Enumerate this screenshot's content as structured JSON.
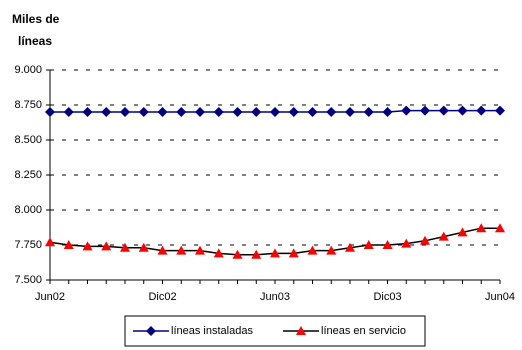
{
  "chart_data": {
    "type": "line",
    "title_lines": [
      "Miles de",
      "líneas"
    ],
    "categories": [
      "Jun02",
      null,
      null,
      null,
      null,
      null,
      "Dic02",
      null,
      null,
      null,
      null,
      null,
      "Jun03",
      null,
      null,
      null,
      null,
      null,
      "Dic03",
      null,
      null,
      null,
      null,
      null,
      "Jun04"
    ],
    "series": [
      {
        "name": "líneas instaladas",
        "color": "#000080",
        "line_color": "#000080",
        "marker": "diamond",
        "values": [
          8700,
          8700,
          8700,
          8700,
          8700,
          8700,
          8700,
          8700,
          8700,
          8700,
          8700,
          8700,
          8700,
          8700,
          8700,
          8700,
          8700,
          8700,
          8700,
          8710,
          8710,
          8710,
          8710,
          8710,
          8710
        ]
      },
      {
        "name": "líneas en servicio",
        "color": "#ff0000",
        "line_color": "#000000",
        "marker": "triangle",
        "values": [
          7770,
          7750,
          7740,
          7740,
          7730,
          7730,
          7710,
          7710,
          7710,
          7690,
          7680,
          7680,
          7690,
          7690,
          7710,
          7710,
          7730,
          7750,
          7750,
          7760,
          7780,
          7810,
          7840,
          7870,
          7870
        ]
      }
    ],
    "ylim": [
      7500,
      9000
    ],
    "yticks": [
      {
        "value": 7500,
        "label": "7.500"
      },
      {
        "value": 7750,
        "label": "7.750"
      },
      {
        "value": 8000,
        "label": "8.000"
      },
      {
        "value": 8250,
        "label": "8.250"
      },
      {
        "value": 8500,
        "label": "8.500"
      },
      {
        "value": 8750,
        "label": "8.750"
      },
      {
        "value": 9000,
        "label": "9.000"
      }
    ],
    "grid": true,
    "legend": "bottom"
  }
}
